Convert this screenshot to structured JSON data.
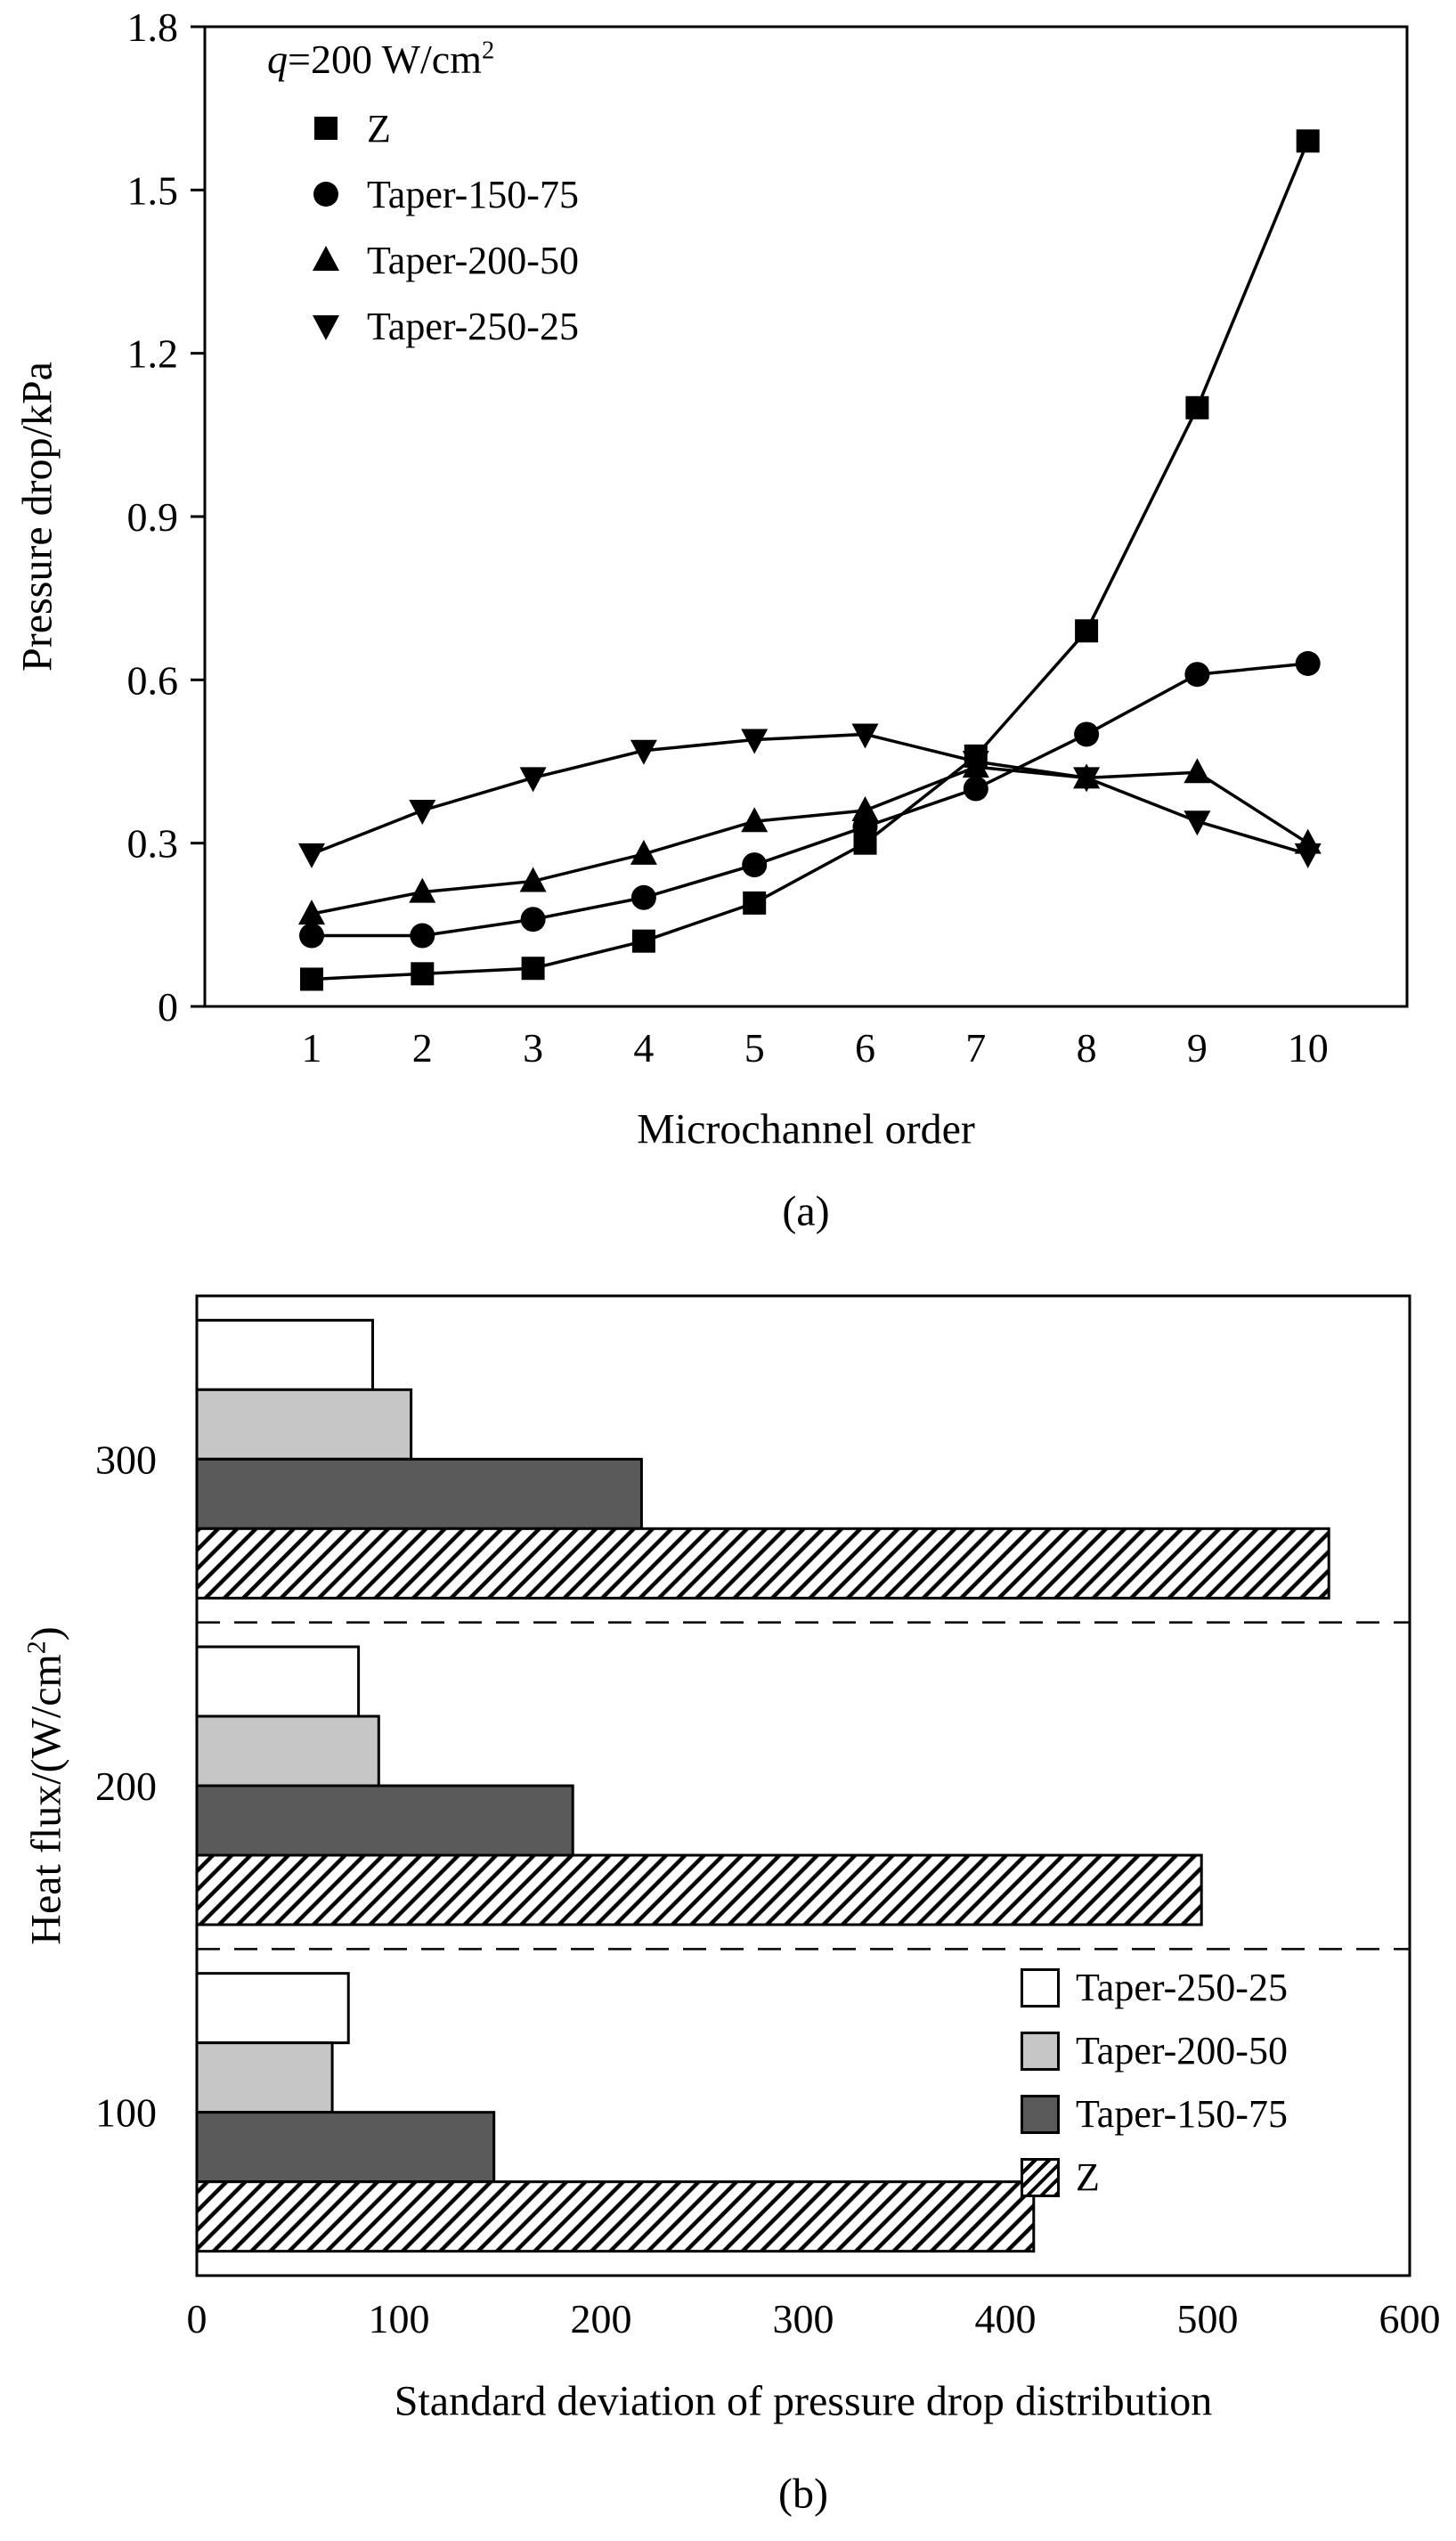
{
  "figure": {
    "panel_a_label": "(a)",
    "panel_b_label": "(b)"
  },
  "chart_data": [
    {
      "type": "line",
      "panel": "a",
      "title": "",
      "xlabel": "Microchannel order",
      "ylabel": "Pressure drop/kPa",
      "x": [
        1,
        2,
        3,
        4,
        5,
        6,
        7,
        8,
        9,
        10
      ],
      "ylim": [
        0,
        1.8
      ],
      "yticks": [
        0,
        0.3,
        0.6,
        0.9,
        1.2,
        1.5,
        1.8
      ],
      "ytick_labels": [
        "0",
        "0.3",
        "0.6",
        "0.9",
        "1.2",
        "1.5",
        "1.8"
      ],
      "legend": {
        "position": "top-left",
        "title_q": "q",
        "title_rest": "=200 W/cm",
        "title_sup": "2"
      },
      "series": [
        {
          "name": "Z",
          "marker": "square",
          "values": [
            0.05,
            0.06,
            0.07,
            0.12,
            0.19,
            0.3,
            0.46,
            0.69,
            1.1,
            1.59
          ]
        },
        {
          "name": "Taper-150-75",
          "marker": "circle",
          "values": [
            0.13,
            0.13,
            0.16,
            0.2,
            0.26,
            0.33,
            0.4,
            0.5,
            0.61,
            0.63
          ]
        },
        {
          "name": "Taper-200-50",
          "marker": "triangle-up",
          "values": [
            0.17,
            0.21,
            0.23,
            0.28,
            0.34,
            0.36,
            0.44,
            0.42,
            0.43,
            0.3
          ]
        },
        {
          "name": "Taper-250-25",
          "marker": "triangle-down",
          "values": [
            0.28,
            0.36,
            0.42,
            0.47,
            0.49,
            0.5,
            0.45,
            0.42,
            0.34,
            0.28
          ]
        }
      ]
    },
    {
      "type": "bar",
      "panel": "b",
      "orientation": "horizontal",
      "title": "",
      "xlabel": "Standard deviation of pressure drop distribution",
      "ylabel_prefix": "Heat flux/(W/cm",
      "ylabel_sup": "2",
      "ylabel_suffix": ")",
      "categories": [
        "100",
        "200",
        "300"
      ],
      "xlim": [
        0,
        600
      ],
      "xticks": [
        0,
        100,
        200,
        300,
        400,
        500,
        600
      ],
      "xtick_labels": [
        "0",
        "100",
        "200",
        "300",
        "400",
        "500",
        "600"
      ],
      "group_separators": "dashed",
      "legend_position": "bottom-right",
      "series": [
        {
          "name": "Taper-250-25",
          "fill": "#ffffff",
          "values": [
            75,
            80,
            87
          ]
        },
        {
          "name": "Taper-200-50",
          "fill": "#c6c6c6",
          "values": [
            67,
            90,
            106
          ]
        },
        {
          "name": "Taper-150-75",
          "fill": "#5a5a5a",
          "values": [
            147,
            186,
            220
          ]
        },
        {
          "name": "Z",
          "fill": "hatch",
          "values": [
            414,
            497,
            560
          ]
        }
      ]
    }
  ]
}
